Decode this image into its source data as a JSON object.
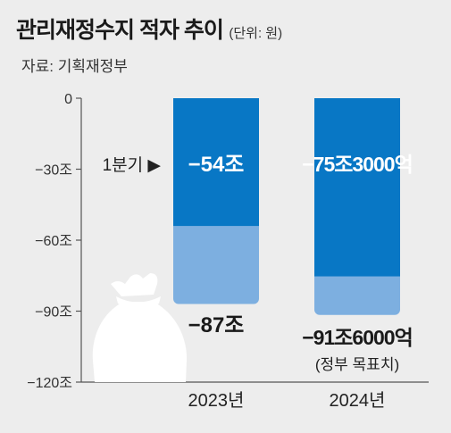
{
  "header": {
    "title": "관리재정수지 적자 추이",
    "unit": "(단위: 원)",
    "source": "자료: 기획재정부"
  },
  "chart_data": {
    "type": "bar",
    "title": "관리재정수지 적자 추이",
    "unit": "(단위: 원)",
    "ylim": [
      -120,
      0
    ],
    "ytick_values": [
      0,
      -30,
      -60,
      -90,
      -120
    ],
    "ytick_labels": [
      "0",
      "−30조",
      "−60조",
      "−90조",
      "−120조"
    ],
    "categories": [
      "2023년",
      "2024년"
    ],
    "series": [
      {
        "name": "1분기",
        "values": [
          -54,
          -75.3
        ]
      },
      {
        "values": [
          -87,
          -91.6
        ]
      }
    ],
    "data_labels": {
      "q1": [
        "−54조",
        "−75조3000억"
      ],
      "total": [
        "−87조",
        "−91조6000억"
      ],
      "total_note": [
        "",
        "(정부 목표치)"
      ]
    },
    "q1_marker": "1분기 ▶",
    "colors": {
      "q1": "#0877c5",
      "total": "#7dafe0",
      "background": "#ededed",
      "icon": "#ffffff"
    }
  }
}
